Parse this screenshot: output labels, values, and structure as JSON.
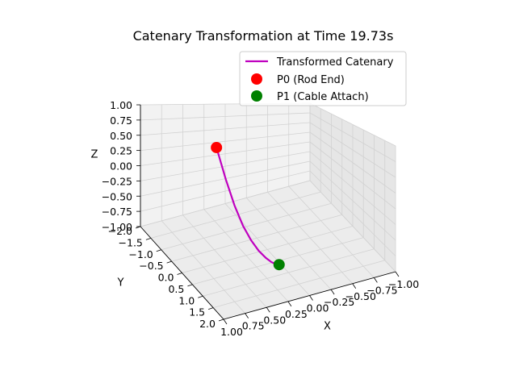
{
  "chart_data": {
    "type": "line",
    "projection": "3d",
    "title": "Catenary Transformation at Time 19.73s",
    "xlabel": "X",
    "ylabel": "Y",
    "zlabel": "Z",
    "xlim": [
      -1.0,
      1.0
    ],
    "ylim": [
      -2.0,
      2.0
    ],
    "zlim": [
      -1.0,
      1.0
    ],
    "x_ticks": [
      "−1.00",
      "−0.75",
      "−0.50",
      "−0.25",
      "0.00",
      "0.25",
      "0.50",
      "0.75",
      "1.00"
    ],
    "y_ticks": [
      "−2.0",
      "−1.5",
      "−1.0",
      "−0.5",
      "0.0",
      "0.5",
      "1.0",
      "1.5",
      "2.0"
    ],
    "z_ticks": [
      "−1.00",
      "−0.75",
      "−0.50",
      "−0.25",
      "0.00",
      "0.25",
      "0.50",
      "0.75",
      "1.00"
    ],
    "grid": true,
    "legend_position": "top-right",
    "series": [
      {
        "name": "Transformed Catenary",
        "kind": "line",
        "color": "#bf00bf",
        "x": [
          0.4,
          0.36,
          0.32,
          0.28,
          0.24,
          0.2,
          0.16,
          0.13,
          0.1,
          0.08
        ],
        "y": [
          -0.8,
          -0.52,
          -0.26,
          -0.02,
          0.2,
          0.4,
          0.58,
          0.72,
          0.82,
          0.88
        ],
        "z": [
          0.65,
          0.18,
          -0.2,
          -0.48,
          -0.66,
          -0.78,
          -0.85,
          -0.88,
          -0.89,
          -0.88
        ]
      },
      {
        "name": "P0 (Rod End)",
        "kind": "point",
        "color": "#ff0000",
        "x": [
          0.4
        ],
        "y": [
          -0.8
        ],
        "z": [
          0.65
        ]
      },
      {
        "name": "P1 (Cable Attach)",
        "kind": "point",
        "color": "#008000",
        "x": [
          0.08
        ],
        "y": [
          0.88
        ],
        "z": [
          -0.88
        ]
      }
    ]
  }
}
